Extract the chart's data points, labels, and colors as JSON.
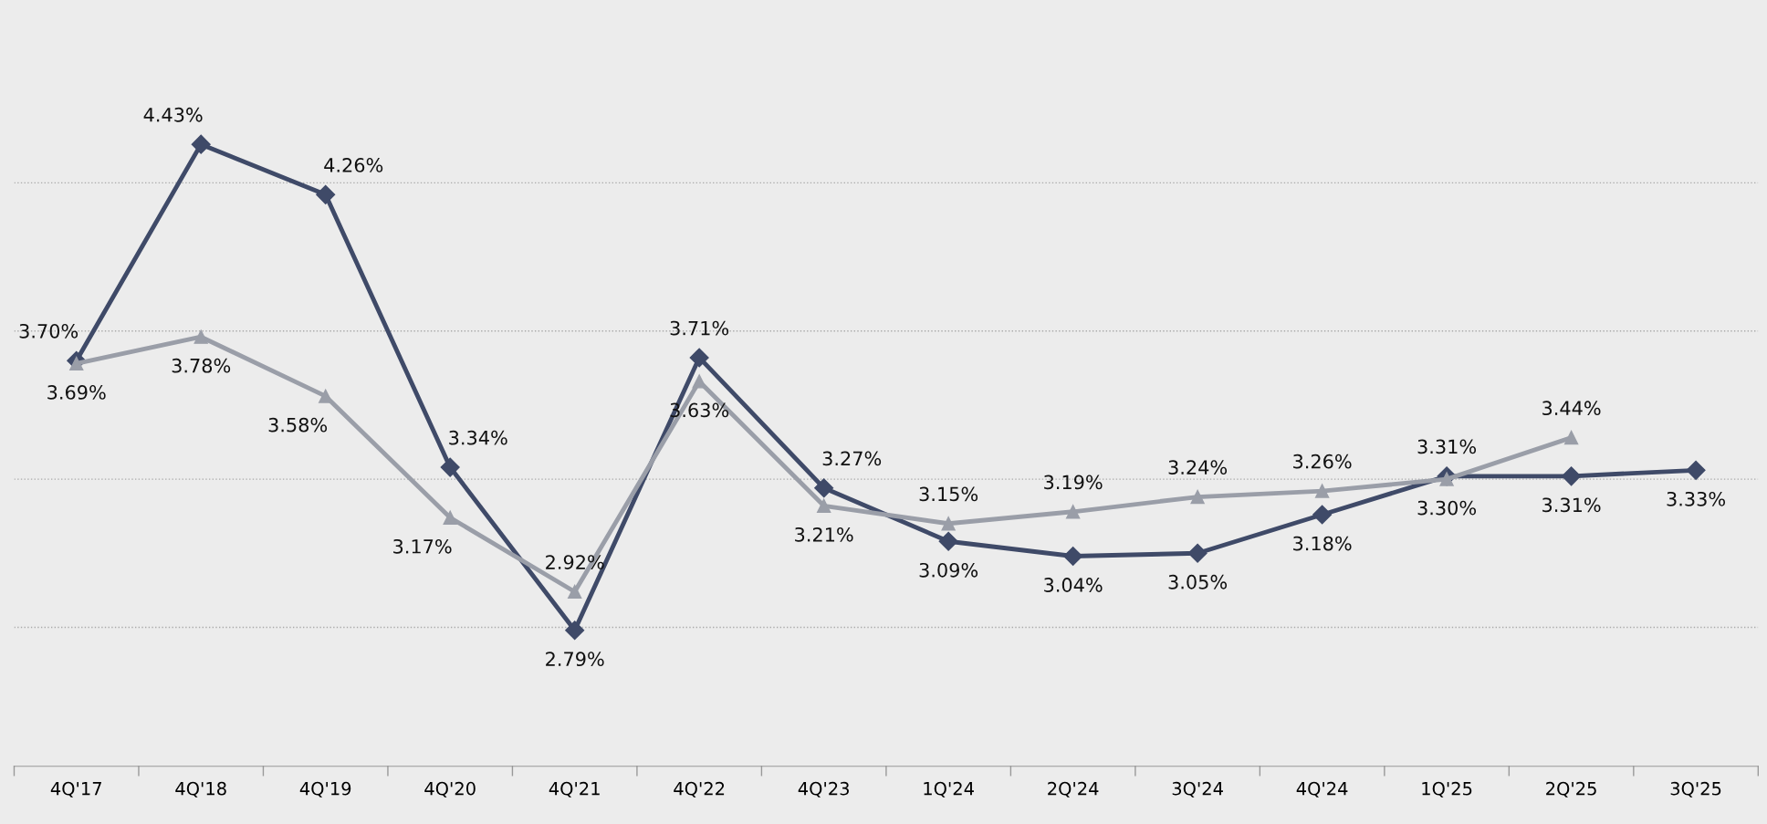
{
  "chart_data": {
    "type": "line",
    "categories": [
      "4Q'17",
      "4Q'18",
      "4Q'19",
      "4Q'20",
      "4Q'21",
      "4Q'22",
      "4Q'23",
      "1Q'24",
      "2Q'24",
      "3Q'24",
      "4Q'24",
      "1Q'25",
      "2Q'25",
      "3Q'25"
    ],
    "series": [
      {
        "color": "#3f4a68",
        "marker": "diamond",
        "values": [
          3.7,
          4.43,
          4.26,
          3.34,
          2.79,
          3.71,
          3.27,
          3.09,
          3.04,
          3.05,
          3.18,
          3.31,
          3.31,
          3.33
        ],
        "value_labels": [
          "3.70%",
          "4.43%",
          "4.26%",
          "3.34%",
          "2.79%",
          "3.71%",
          "3.27%",
          "3.09%",
          "3.04%",
          "3.05%",
          "3.18%",
          "3.31%",
          "3.31%",
          "3.33%"
        ]
      },
      {
        "color": "#9a9ea8",
        "marker": "triangle",
        "values": [
          3.69,
          3.78,
          3.58,
          3.17,
          2.92,
          3.63,
          3.21,
          3.15,
          3.19,
          3.24,
          3.26,
          3.3,
          3.44,
          null
        ],
        "value_labels": [
          "3.69%",
          "3.78%",
          "3.58%",
          "3.17%",
          "2.92%",
          "3.63%",
          "3.21%",
          "3.15%",
          "3.19%",
          "3.24%",
          "3.26%",
          "3.30%",
          "3.44%",
          null
        ]
      }
    ],
    "yticks": [
      {
        "value": 2.8,
        "label": null
      },
      {
        "value": 3.3,
        "label": null
      },
      {
        "value": 3.8,
        "label": null
      },
      {
        "value": 4.3,
        "label": null
      }
    ],
    "tick_labels": "x",
    "grid": "y",
    "line_style": "solid",
    "legend": false
  }
}
